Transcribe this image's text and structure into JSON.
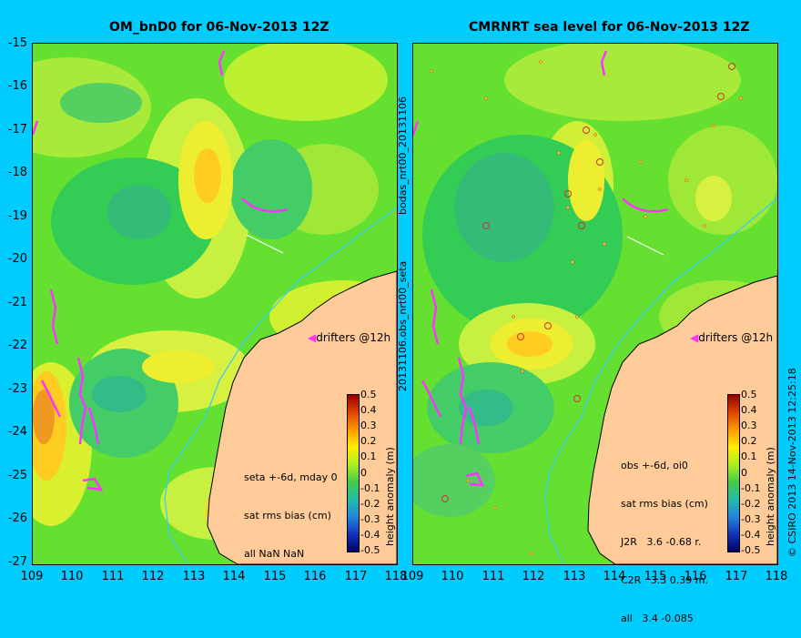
{
  "left_panel": {
    "title": "OM_bnD0 for 06-Nov-2013 12Z",
    "info_lines": [
      "seta +-6d, mday 0",
      "sat rms bias (cm)",
      "all NaN NaN"
    ],
    "drifters_label": "drifters @12h"
  },
  "right_panel": {
    "title": "CMRNRT sea level  for 06-Nov-2013 12Z",
    "info_lines": [
      "obs +-6d, oi0",
      "sat rms bias (cm)",
      "J2R   3.6 -0.68 r.",
      "C2R   3.3 0.39 m.",
      "all   3.4 -0.085"
    ],
    "drifters_label": "drifters @12h"
  },
  "y_ticks": [
    "-15",
    "-16",
    "-17",
    "-18",
    "-19",
    "-20",
    "-21",
    "-22",
    "-23",
    "-24",
    "-25",
    "-26",
    "-27"
  ],
  "x_ticks": [
    "109",
    "110",
    "111",
    "112",
    "113",
    "114",
    "115",
    "116",
    "117",
    "118"
  ],
  "colorbar": {
    "ticks": [
      "0.5",
      "0.4",
      "0.3",
      "0.2",
      "0.1",
      "0",
      "-0.1",
      "-0.2",
      "-0.3",
      "-0.4",
      "-0.5"
    ],
    "label": "height anomaly (m)"
  },
  "side_labels": {
    "top": "bodas_nrt00_20131106",
    "middle": "20131106.obs_nrt00_seta",
    "right": "© CSIRO 2013   14-Nov-2013 12:25:18"
  },
  "colors": {
    "background": "#00ccff",
    "land": "#ffcc99",
    "drifter": "#ff33ff",
    "coast_isobath": "#33ccff"
  }
}
